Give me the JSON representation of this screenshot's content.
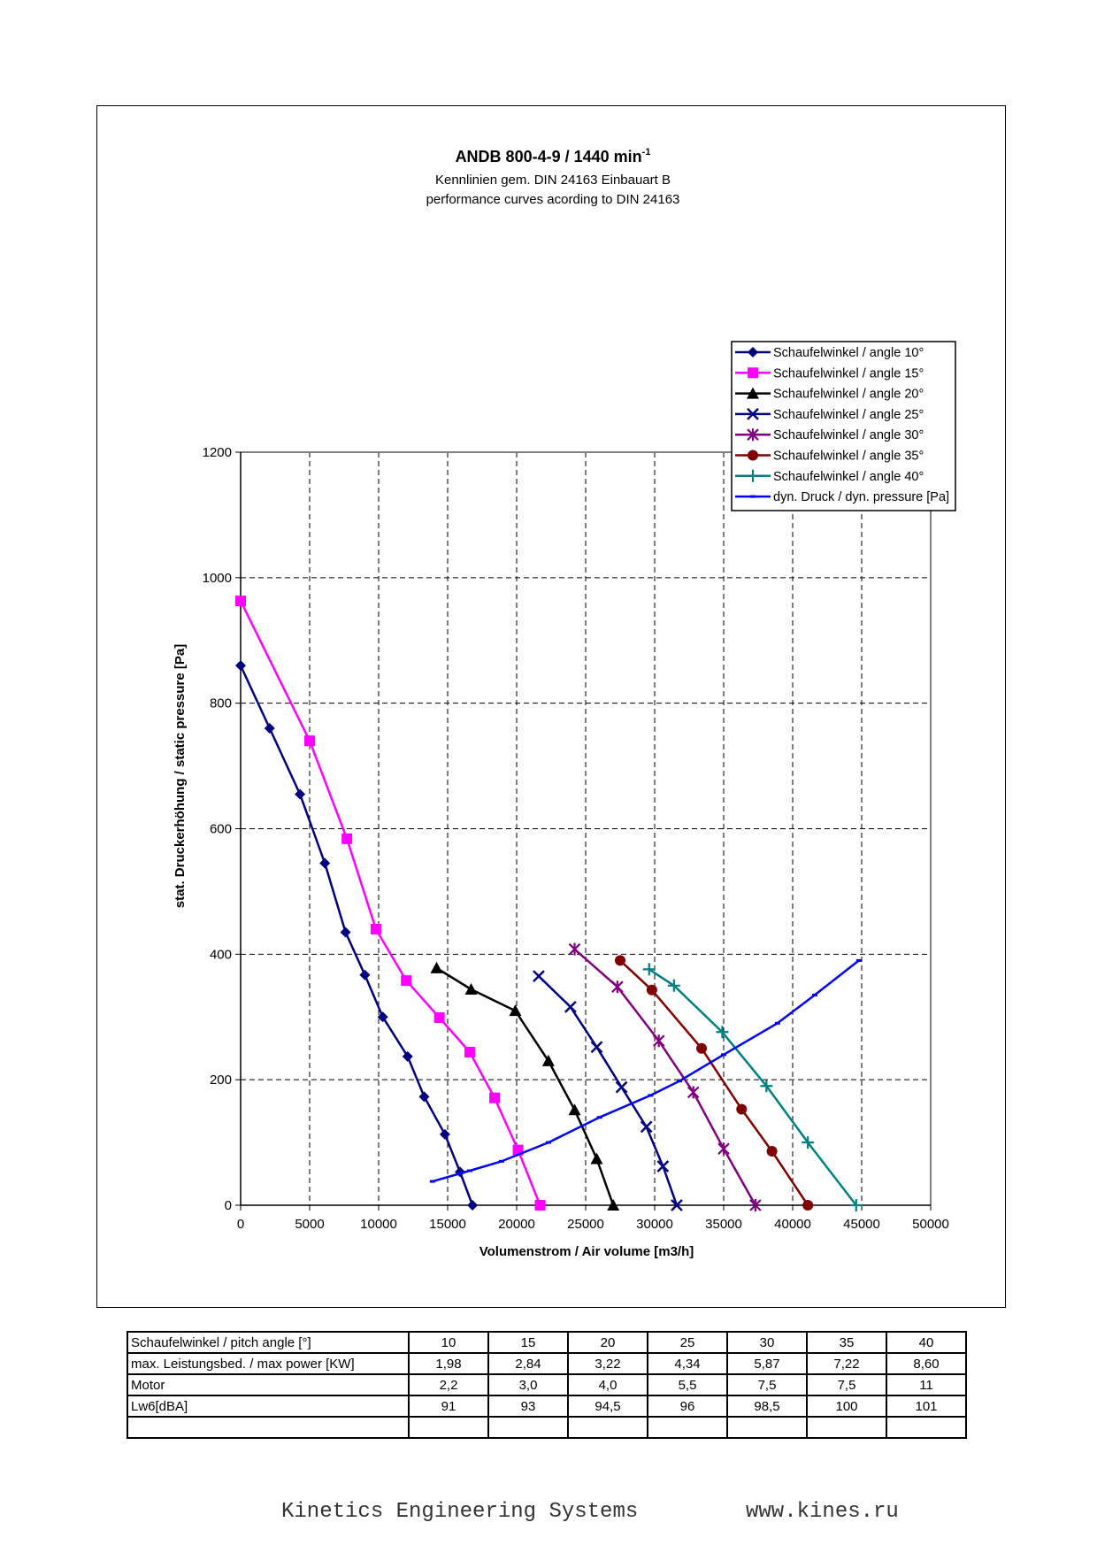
{
  "chart_data": {
    "type": "line",
    "title": "ANDB 800-4-9 / 1440 min",
    "title_superscript": "-1",
    "subtitle_de": "Kennlinien gem. DIN 24163 Einbauart B",
    "subtitle_en": "performance curves acording to DIN 24163",
    "xlabel": "Volumenstrom / Air volume [m3/h]",
    "ylabel": "stat. Druckerhöhung / static pressure [Pa]",
    "xlim": [
      0,
      50000
    ],
    "ylim": [
      0,
      1200
    ],
    "x_ticks": [
      "0",
      "5000",
      "10000",
      "15000",
      "20000",
      "25000",
      "30000",
      "35000",
      "40000",
      "45000",
      "50000"
    ],
    "y_ticks": [
      "0",
      "200",
      "400",
      "600",
      "800",
      "1000",
      "1200"
    ],
    "grid": true,
    "legend_position": "top-right",
    "series": [
      {
        "name": "Schaufelwinkel / angle 10°",
        "color": "#000080",
        "marker": "diamond",
        "x": [
          0,
          2100,
          4300,
          6100,
          7600,
          9000,
          10300,
          12100,
          13300,
          14800,
          15900,
          16800
        ],
        "y": [
          860,
          760,
          655,
          545,
          435,
          367,
          300,
          237,
          173,
          113,
          53,
          0
        ]
      },
      {
        "name": "Schaufelwinkel / angle 15°",
        "color": "#ff00ff",
        "marker": "square",
        "x": [
          0,
          5000,
          7700,
          9800,
          12000,
          14400,
          16600,
          18400,
          20100,
          21700
        ],
        "y": [
          963,
          740,
          584,
          440,
          358,
          299,
          244,
          171,
          88,
          0
        ]
      },
      {
        "name": "Schaufelwinkel / angle 20°",
        "color": "#000000",
        "marker": "triangle",
        "x": [
          14200,
          16700,
          19900,
          22300,
          24200,
          25800,
          27000
        ],
        "y": [
          378,
          344,
          310,
          230,
          152,
          74,
          0
        ]
      },
      {
        "name": "Schaufelwinkel / angle 25°",
        "color": "#000080",
        "marker": "x",
        "x": [
          21600,
          23900,
          25800,
          27600,
          29400,
          30600,
          31600
        ],
        "y": [
          365,
          316,
          252,
          188,
          125,
          62,
          0
        ]
      },
      {
        "name": "Schaufelwinkel / angle 30°",
        "color": "#800080",
        "marker": "asterisk",
        "x": [
          24200,
          27300,
          30300,
          32800,
          35000,
          37300
        ],
        "y": [
          408,
          348,
          262,
          180,
          90,
          0
        ]
      },
      {
        "name": "Schaufelwinkel / angle 35°",
        "color": "#800000",
        "marker": "circle",
        "x": [
          27500,
          29800,
          33400,
          36300,
          38500,
          41100
        ],
        "y": [
          390,
          343,
          250,
          153,
          86,
          0
        ]
      },
      {
        "name": "Schaufelwinkel / angle 40°",
        "color": "#008080",
        "marker": "plus",
        "x": [
          29600,
          31400,
          34900,
          38100,
          41100,
          44600
        ],
        "y": [
          376,
          350,
          276,
          190,
          100,
          0
        ]
      },
      {
        "name": "dyn. Druck / dyn. pressure [Pa]",
        "color": "#0000ff",
        "marker": "dash",
        "x": [
          13900,
          16600,
          18900,
          22300,
          26000,
          29700,
          31800,
          35000,
          38900,
          41600,
          44800
        ],
        "y": [
          38,
          55,
          70,
          100,
          140,
          175,
          198,
          240,
          290,
          335,
          390
        ]
      }
    ]
  },
  "spec_table": {
    "rows": [
      {
        "label": "Schaufelwinkel / pitch angle [°]",
        "values": [
          "10",
          "15",
          "20",
          "25",
          "30",
          "35",
          "40"
        ]
      },
      {
        "label": "max. Leistungsbed. / max power [KW]",
        "values": [
          "1,98",
          "2,84",
          "3,22",
          "4,34",
          "5,87",
          "7,22",
          "8,60"
        ]
      },
      {
        "label": "Motor",
        "values": [
          "2,2",
          "3,0",
          "4,0",
          "5,5",
          "7,5",
          "7,5",
          "11"
        ]
      },
      {
        "label": "Lw6[dBA]",
        "values": [
          "91",
          "93",
          "94,5",
          "96",
          "98,5",
          "100",
          "101"
        ]
      },
      {
        "label": "",
        "values": [
          "",
          "",
          "",
          "",
          "",
          "",
          ""
        ]
      }
    ]
  },
  "footer": {
    "company": "Kinetics Engineering Systems",
    "website": "www.kines.ru"
  }
}
